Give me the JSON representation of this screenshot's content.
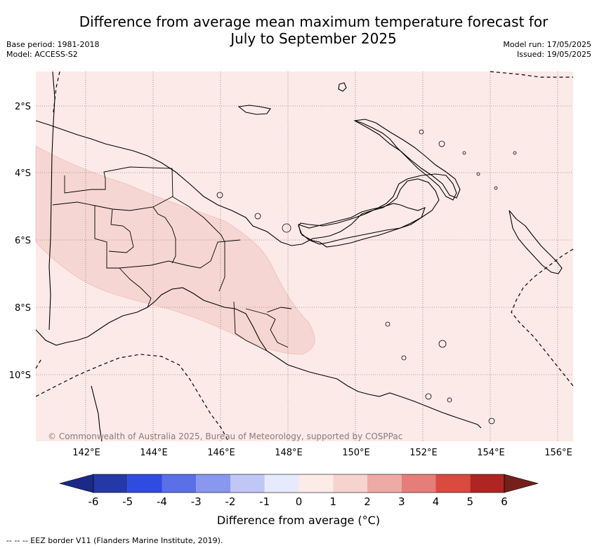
{
  "header": {
    "title_line1": "Difference from average mean maximum temperature forecast for",
    "title_line2": "July to September 2025",
    "base_period": "Base period: 1981-2018",
    "model": "Model: ACCESS-S2",
    "model_run": "Model run: 17/05/2025",
    "issued": "Issued: 19/05/2025"
  },
  "map": {
    "region": "Papua New Guinea",
    "lat_labels": [
      "2°S",
      "4°S",
      "6°S",
      "8°S",
      "10°S"
    ],
    "lon_labels": [
      "142°E",
      "144°E",
      "146°E",
      "148°E",
      "150°E",
      "152°E",
      "154°E",
      "156°E"
    ],
    "background_color": "#fceae8",
    "anomaly_zone_color": "#f6d6d2",
    "copyright": "© Commonwealth of Australia 2025, Bureau of Meteorology, supported by COSPPac"
  },
  "colorbar": {
    "tick_labels": [
      "-6",
      "-5",
      "-4",
      "-3",
      "-2",
      "-1",
      "0",
      "1",
      "2",
      "3",
      "4",
      "5",
      "6"
    ],
    "colors": [
      "#2439a6",
      "#2f4be0",
      "#5b6fe6",
      "#8898ee",
      "#c0c7f6",
      "#e6eafc",
      "#fdebe8",
      "#f6d3cf",
      "#eeaaa5",
      "#e47e78",
      "#d94a3f",
      "#ae2521"
    ],
    "under_color": "#1b2a87",
    "over_color": "#74201b",
    "label": "Difference from average (°C)"
  },
  "footnote": "--  --  -- EEZ border V11 (Flanders Marine Institute, 2019)."
}
